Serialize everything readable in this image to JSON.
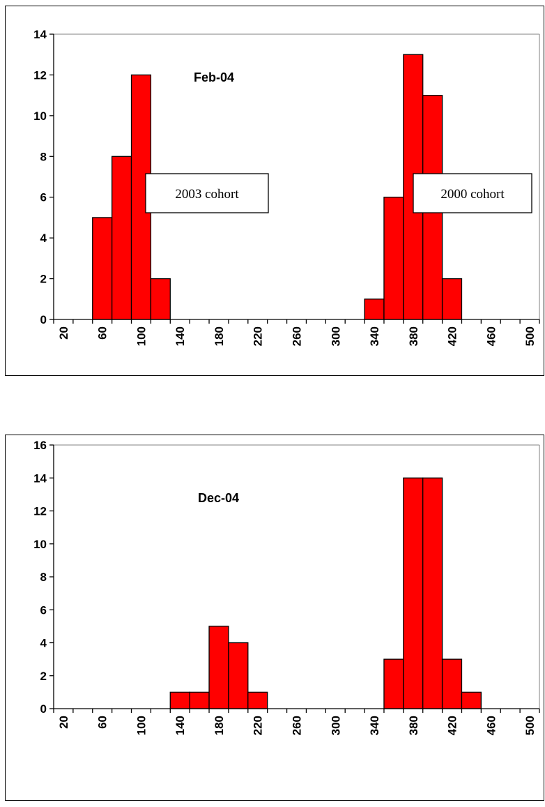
{
  "chart_data": [
    {
      "type": "bar",
      "title": "Feb-04",
      "xlabel": "",
      "ylabel": "",
      "x_tick_labels": [
        "20",
        "60",
        "100",
        "140",
        "180",
        "220",
        "260",
        "300",
        "340",
        "380",
        "420",
        "460",
        "500"
      ],
      "bins": [
        20,
        40,
        60,
        80,
        100,
        120,
        140,
        160,
        180,
        200,
        220,
        240,
        260,
        280,
        300,
        320,
        340,
        360,
        380,
        400,
        420,
        440,
        460,
        480,
        500
      ],
      "values": [
        0,
        0,
        5,
        8,
        12,
        2,
        0,
        0,
        0,
        0,
        0,
        0,
        0,
        0,
        0,
        0,
        1,
        6,
        13,
        11,
        2,
        0,
        0,
        0,
        0
      ],
      "ylim": [
        0,
        14
      ],
      "y_ticks": [
        0,
        2,
        4,
        6,
        8,
        10,
        12,
        14
      ],
      "grid": false,
      "bar_color": "#FF0000",
      "annotations": [
        "2003 cohort",
        "2000 cohort"
      ]
    },
    {
      "type": "bar",
      "title": "Dec-04",
      "xlabel": "",
      "ylabel": "",
      "x_tick_labels": [
        "20",
        "60",
        "100",
        "140",
        "180",
        "220",
        "260",
        "300",
        "340",
        "380",
        "420",
        "460",
        "500"
      ],
      "bins": [
        20,
        40,
        60,
        80,
        100,
        120,
        140,
        160,
        180,
        200,
        220,
        240,
        260,
        280,
        300,
        320,
        340,
        360,
        380,
        400,
        420,
        440,
        460,
        480,
        500
      ],
      "values": [
        0,
        0,
        0,
        0,
        0,
        0,
        1,
        1,
        5,
        4,
        1,
        0,
        0,
        0,
        0,
        0,
        0,
        3,
        14,
        14,
        3,
        1,
        0,
        0,
        0
      ],
      "ylim": [
        0,
        16
      ],
      "y_ticks": [
        0,
        2,
        4,
        6,
        8,
        10,
        12,
        14,
        16
      ],
      "grid": false,
      "bar_color": "#FF0000",
      "annotations": []
    }
  ]
}
